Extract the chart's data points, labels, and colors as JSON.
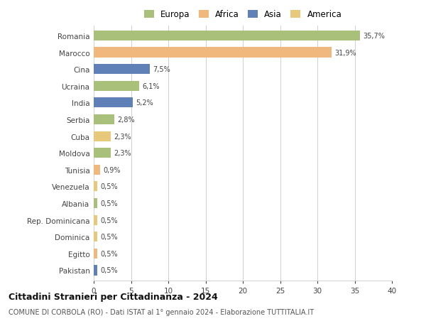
{
  "countries": [
    "Romania",
    "Marocco",
    "Cina",
    "Ucraina",
    "India",
    "Serbia",
    "Cuba",
    "Moldova",
    "Tunisia",
    "Venezuela",
    "Albania",
    "Rep. Dominicana",
    "Dominica",
    "Egitto",
    "Pakistan"
  ],
  "values": [
    35.7,
    31.9,
    7.5,
    6.1,
    5.2,
    2.8,
    2.3,
    2.3,
    0.9,
    0.5,
    0.5,
    0.5,
    0.5,
    0.5,
    0.5
  ],
  "labels": [
    "35,7%",
    "31,9%",
    "7,5%",
    "6,1%",
    "5,2%",
    "2,8%",
    "2,3%",
    "2,3%",
    "0,9%",
    "0,5%",
    "0,5%",
    "0,5%",
    "0,5%",
    "0,5%",
    "0,5%"
  ],
  "colors": [
    "#a8c07a",
    "#f0b87c",
    "#6080b8",
    "#a8c07a",
    "#6080b8",
    "#a8c07a",
    "#e8c87a",
    "#a8c07a",
    "#f0b87c",
    "#e8c87a",
    "#a8c07a",
    "#e8c87a",
    "#e8c87a",
    "#f0b87c",
    "#6080b8"
  ],
  "legend_labels": [
    "Europa",
    "Africa",
    "Asia",
    "America"
  ],
  "legend_colors": [
    "#a8c07a",
    "#f0b87c",
    "#6080b8",
    "#e8c87a"
  ],
  "title": "Cittadini Stranieri per Cittadinanza - 2024",
  "subtitle": "COMUNE DI CORBOLA (RO) - Dati ISTAT al 1° gennaio 2024 - Elaborazione TUTTITALIA.IT",
  "xlim": [
    0,
    40
  ],
  "xticks": [
    0,
    5,
    10,
    15,
    20,
    25,
    30,
    35,
    40
  ],
  "background_color": "#ffffff",
  "grid_color": "#d0d0d0",
  "bar_height": 0.6
}
